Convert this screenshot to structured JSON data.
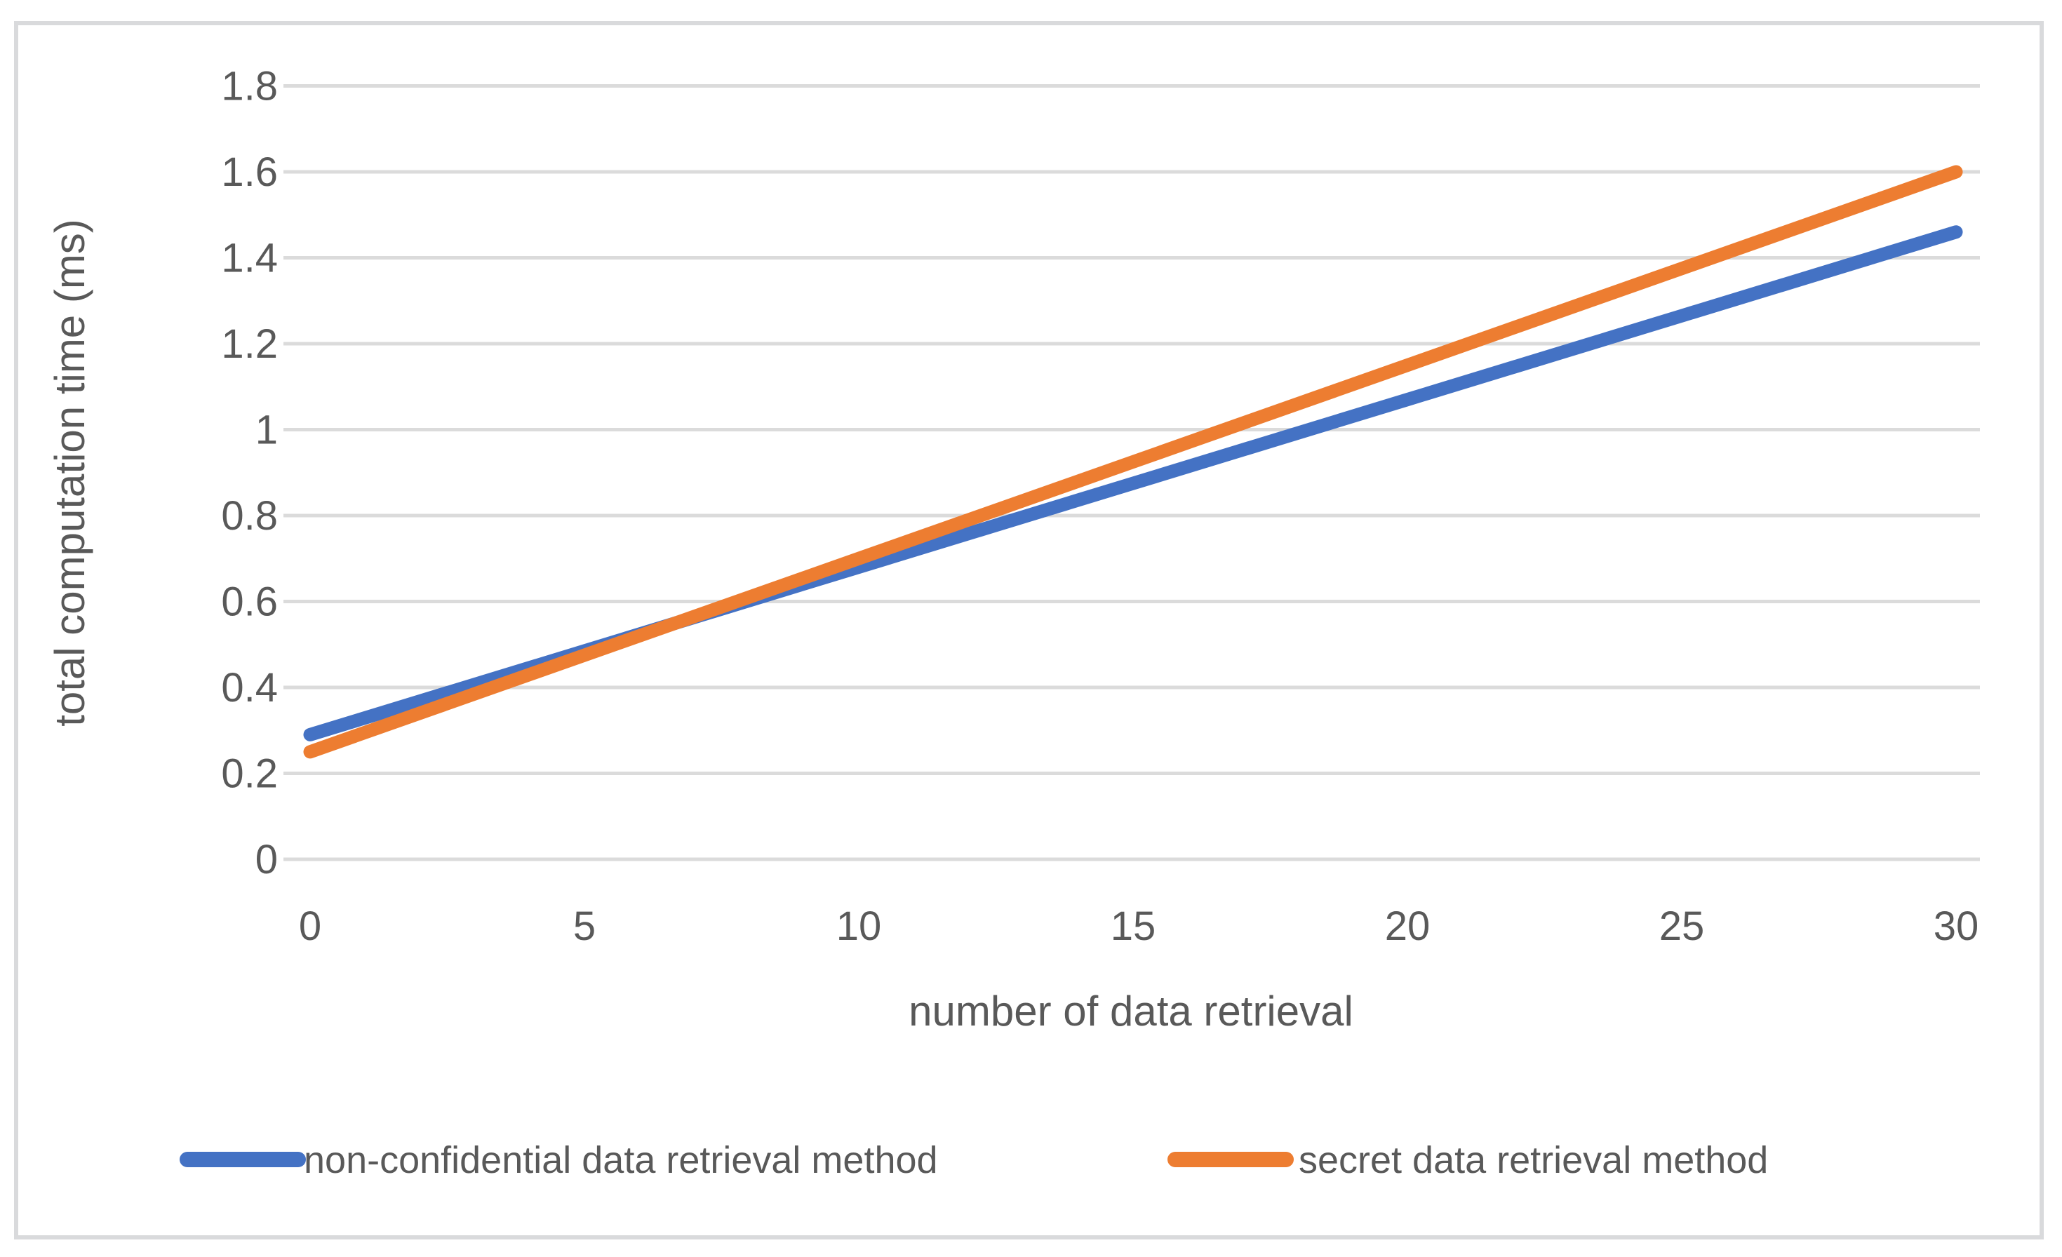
{
  "chart_data": {
    "type": "line",
    "title": "",
    "xlabel": "number of data retrieval",
    "ylabel": "total computation time (ms)",
    "x": [
      0,
      5,
      10,
      15,
      20,
      25,
      30
    ],
    "xtick_labels": [
      "0",
      "5",
      "10",
      "15",
      "20",
      "25",
      "30"
    ],
    "ytick_labels": [
      "0",
      "0.2",
      "0.4",
      "0.6",
      "0.8",
      "1",
      "1.2",
      "1.4",
      "1.6",
      "1.8"
    ],
    "xlim": [
      0,
      30
    ],
    "ylim": [
      0,
      1.8
    ],
    "ytick_step": 0.2,
    "grid": "horizontal",
    "legend_position": "bottom",
    "series": [
      {
        "name": "non-confidential data retrieval method",
        "color": "#4472C4",
        "values": [
          0.29,
          0.485,
          0.68,
          0.875,
          1.07,
          1.265,
          1.46
        ]
      },
      {
        "name": "secret data retrieval method",
        "color": "#ED7D31",
        "values": [
          0.25,
          0.475,
          0.7,
          0.925,
          1.15,
          1.375,
          1.6
        ]
      }
    ],
    "colors": {
      "text": "#595959",
      "grid": "#DBDBDB",
      "border": "#D9DADC",
      "background": "#FFFFFF"
    }
  }
}
